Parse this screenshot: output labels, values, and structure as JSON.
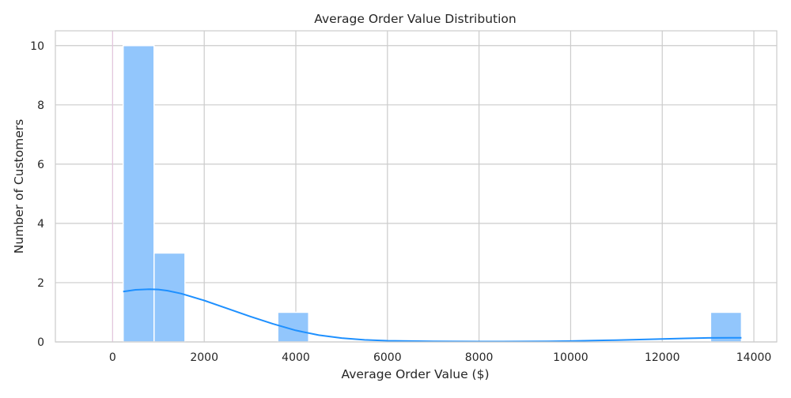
{
  "chart_data": {
    "type": "bar",
    "title": "Average Order Value Distribution",
    "xlabel": "Average Order Value ($)",
    "ylabel": "Number of Customers",
    "xlim": [
      -1250,
      14500
    ],
    "ylim": [
      0,
      10.5
    ],
    "xticks": [
      0,
      2000,
      4000,
      6000,
      8000,
      10000,
      12000,
      14000
    ],
    "yticks": [
      0,
      2,
      4,
      6,
      8,
      10
    ],
    "grid": true,
    "bins": [
      {
        "x0": 230,
        "x1": 905,
        "count": 10
      },
      {
        "x0": 905,
        "x1": 1580,
        "count": 3
      },
      {
        "x0": 3605,
        "x1": 4280,
        "count": 1
      },
      {
        "x0": 13055,
        "x1": 13730,
        "count": 1
      }
    ],
    "kde": {
      "x": [
        230,
        500,
        800,
        1000,
        1200,
        1500,
        2000,
        2500,
        3000,
        3500,
        4000,
        4500,
        5000,
        5500,
        6000,
        6500,
        7000,
        7500,
        8000,
        8500,
        9000,
        9500,
        10000,
        10500,
        11000,
        11500,
        12000,
        12500,
        13000,
        13500,
        13730
      ],
      "y": [
        1.7,
        1.76,
        1.78,
        1.77,
        1.73,
        1.63,
        1.4,
        1.13,
        0.86,
        0.61,
        0.39,
        0.23,
        0.13,
        0.07,
        0.04,
        0.03,
        0.02,
        0.015,
        0.012,
        0.012,
        0.015,
        0.02,
        0.03,
        0.045,
        0.06,
        0.08,
        0.1,
        0.12,
        0.135,
        0.14,
        0.14
      ]
    },
    "bar_color": "#92c6fc",
    "bar_edge_color": "#ffffff",
    "line_color": "#1e90ff",
    "grid_color": "#cccccc",
    "spine_color": "#cccccc"
  }
}
